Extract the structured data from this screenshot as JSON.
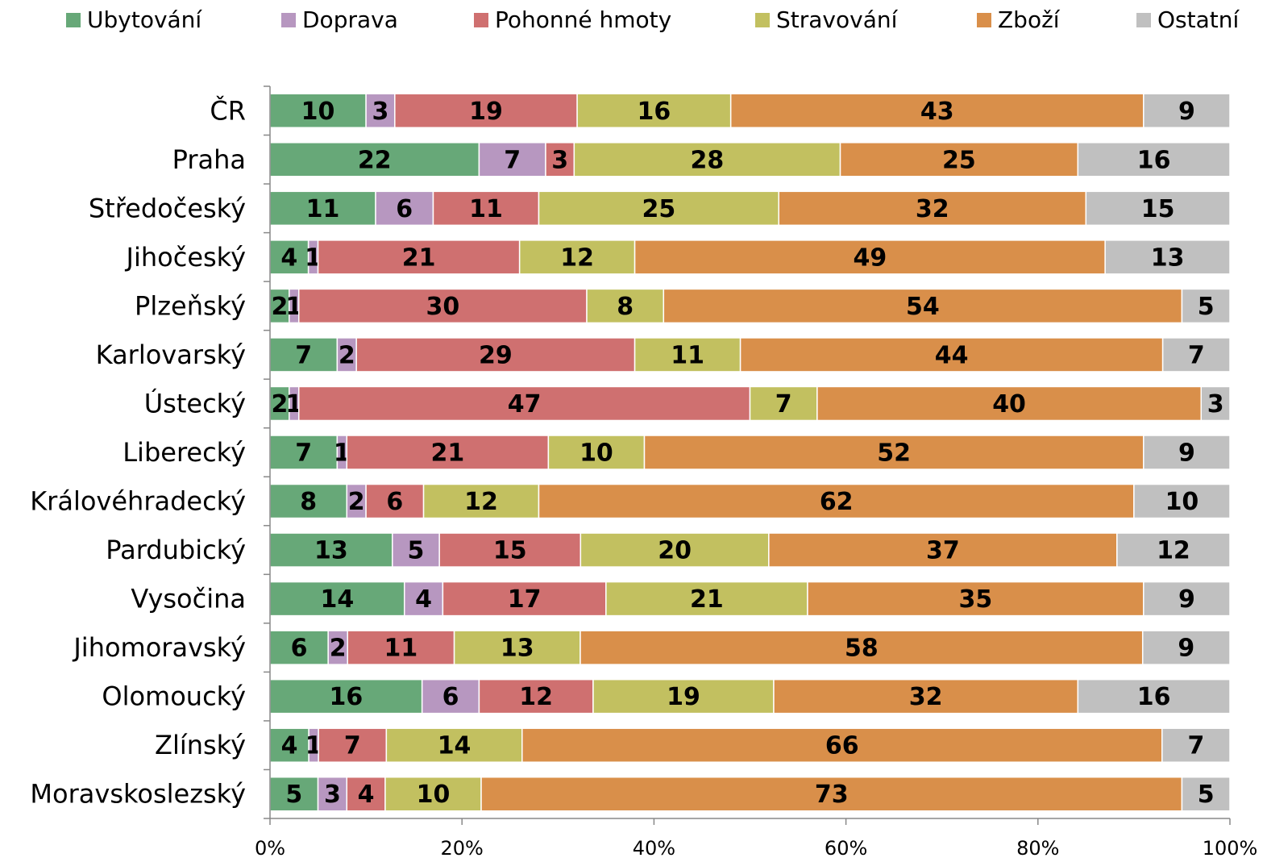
{
  "chart_data": {
    "type": "stacked_bar_100",
    "categories": [
      "ČR",
      "Praha",
      "Středočeský",
      "Jihočeský",
      "Plzeňský",
      "Karlovarský",
      "Ústecký",
      "Liberecký",
      "Královéhradecký",
      "Pardubický",
      "Vysočina",
      "Jihomoravský",
      "Olomoucký",
      "Zlínský",
      "Moravskoslezský"
    ],
    "series": [
      {
        "name": "Ubytování",
        "color": "#67a878",
        "values": [
          10,
          22,
          11,
          4,
          2,
          7,
          2,
          7,
          8,
          13,
          14,
          6,
          16,
          4,
          5
        ]
      },
      {
        "name": "Doprava",
        "color": "#b797c0",
        "values": [
          3,
          7,
          6,
          1,
          1,
          2,
          1,
          1,
          2,
          5,
          4,
          2,
          6,
          1,
          3
        ]
      },
      {
        "name": "Pohonné hmoty",
        "color": "#cf7070",
        "values": [
          19,
          3,
          11,
          21,
          30,
          29,
          47,
          21,
          6,
          15,
          17,
          11,
          12,
          7,
          4
        ]
      },
      {
        "name": "Stravování",
        "color": "#c2c060",
        "values": [
          16,
          28,
          25,
          12,
          8,
          11,
          7,
          10,
          12,
          20,
          21,
          13,
          19,
          14,
          10
        ]
      },
      {
        "name": "Zboží",
        "color": "#d98f4a",
        "values": [
          43,
          25,
          32,
          49,
          54,
          44,
          40,
          52,
          62,
          37,
          35,
          58,
          32,
          66,
          73
        ]
      },
      {
        "name": "Ostatní",
        "color": "#c0c0c0",
        "values": [
          9,
          16,
          15,
          13,
          5,
          7,
          3,
          9,
          10,
          12,
          9,
          9,
          16,
          7,
          5
        ]
      }
    ],
    "xlim": [
      0,
      100
    ],
    "xticks": [
      {
        "value": 0,
        "label": "0%"
      },
      {
        "value": 20,
        "label": "20%"
      },
      {
        "value": 40,
        "label": "40%"
      },
      {
        "value": 60,
        "label": "60%"
      },
      {
        "value": 80,
        "label": "80%"
      },
      {
        "value": 100,
        "label": "100%"
      }
    ],
    "legend": "top"
  }
}
